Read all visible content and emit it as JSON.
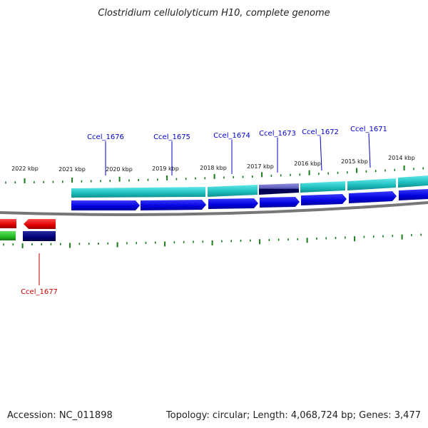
{
  "title": "Clostridium cellulolyticum H10, complete genome",
  "accession": "Accession: NC_011898",
  "summary": "Topology: circular; Length: 4,068,724 bp; Genes: 3,477",
  "scale": {
    "labels": [
      "2022 kbp",
      "2021 kbp",
      "2020 kbp",
      "2019 kbp",
      "2018 kbp",
      "2017 kbp",
      "2016 kbp",
      "2015 kbp",
      "2014 kbp"
    ]
  },
  "genes": [
    {
      "name": "Ccel_1676",
      "color": "#0000cc"
    },
    {
      "name": "Ccel_1675",
      "color": "#0000cc"
    },
    {
      "name": "Ccel_1674",
      "color": "#0000cc"
    },
    {
      "name": "Ccel_1673",
      "color": "#0000cc"
    },
    {
      "name": "Ccel_1672",
      "color": "#0000cc"
    },
    {
      "name": "Ccel_1671",
      "color": "#0000cc"
    },
    {
      "name": "Ccel_1677",
      "color": "#cc0000"
    }
  ],
  "colors": {
    "backbone": "#777777",
    "ticks": "#1a7a1a",
    "cds_forward": "#0000ee",
    "cds_reverse": "#ee0000",
    "gene_cyan": "#22cccc",
    "gene_dark": "#000077",
    "rna_green": "#22bb22",
    "highlight": "#6666cc"
  }
}
